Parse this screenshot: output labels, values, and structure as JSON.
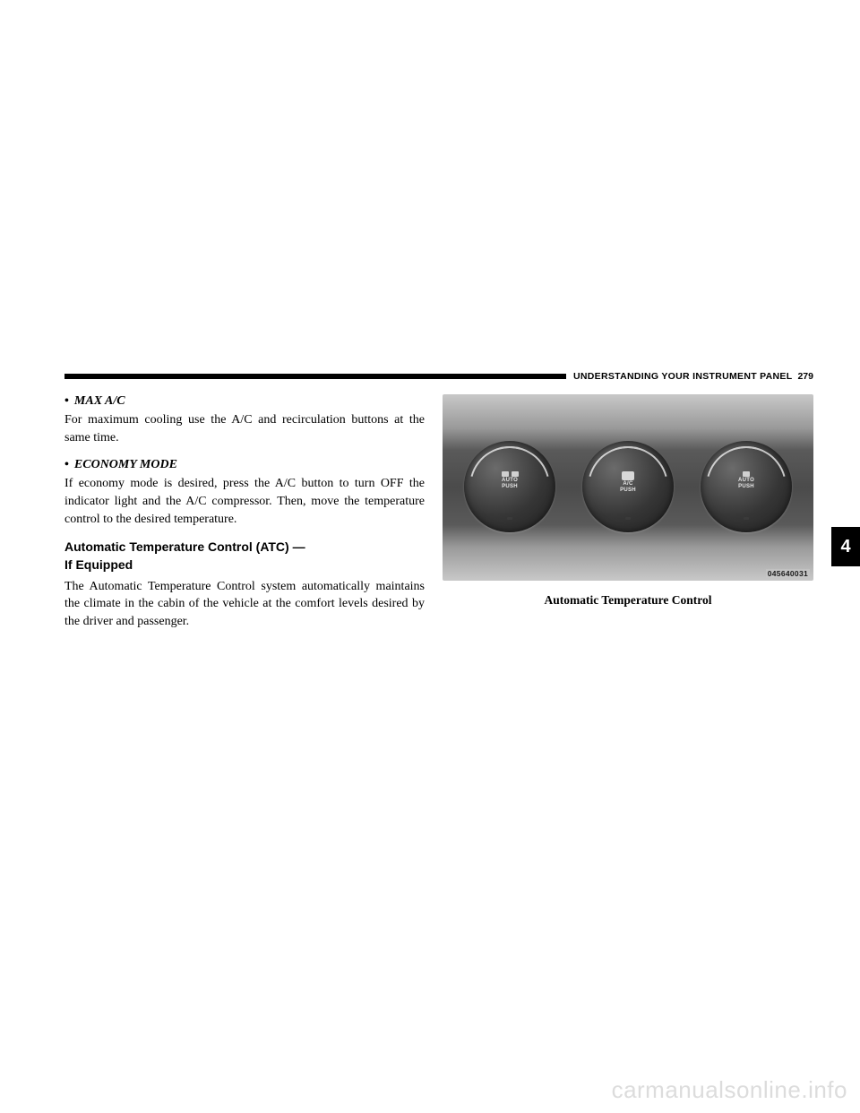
{
  "header": {
    "section_title": "UNDERSTANDING YOUR INSTRUMENT PANEL",
    "page_number": "279"
  },
  "side_tab": "4",
  "left_column": {
    "item1": {
      "heading": "MAX A/C",
      "body": "For maximum cooling use the A/C and recirculation buttons at the same time."
    },
    "item2": {
      "heading": "ECONOMY MODE",
      "body": "If economy mode is desired, press the A/C button to turn OFF the indicator light and the A/C compressor. Then, move the temperature control to the desired temperature."
    },
    "subsection": {
      "heading_line1": "Automatic Temperature Control (ATC) —",
      "heading_line2": "If Equipped",
      "body": "The Automatic Temperature Control system automatically maintains the climate in the cabin of the vehicle at the comfort levels desired by the driver and passenger."
    }
  },
  "figure": {
    "image_code": "045640031",
    "caption": "Automatic Temperature Control",
    "dials": {
      "dial1": {
        "label_top": "AUTO",
        "label_bottom": "PUSH"
      },
      "dial2": {
        "label_top": "A/C",
        "label_bottom": "PUSH"
      },
      "dial3": {
        "label_top": "AUTO",
        "label_bottom": "PUSH"
      }
    }
  },
  "watermark": "carmanualsonline.info",
  "colors": {
    "page_bg": "#ffffff",
    "text": "#000000",
    "bar": "#000000",
    "tab_bg": "#000000",
    "tab_fg": "#ffffff",
    "watermark": "#dcdcdc"
  }
}
